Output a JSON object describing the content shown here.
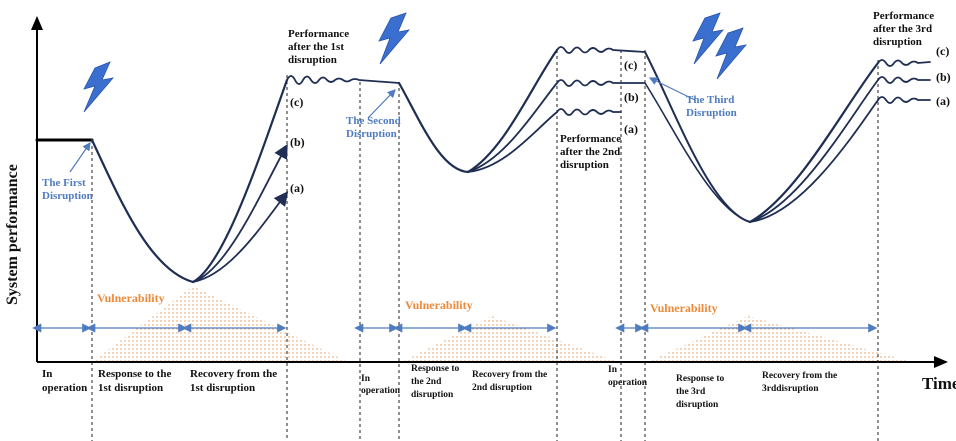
{
  "axes": {
    "y_label": "System performance",
    "x_label": "Time"
  },
  "disruptions": {
    "first": "The First Disruption",
    "second": "The Second Disruption",
    "third": "The Third Disruption"
  },
  "performance_labels": {
    "after_1": [
      "Performance",
      "after the 1st",
      "disruption"
    ],
    "after_2": [
      "Performance",
      "after the 2nd",
      "disruption"
    ],
    "after_3": [
      "Performance",
      "after the 3rd",
      "disruption"
    ]
  },
  "curve_labels": [
    "(a)",
    "(b)",
    "(c)"
  ],
  "vulnerability_label": "Vulnerability",
  "phases": {
    "in_operation_1": [
      "In",
      "operation"
    ],
    "response_1": [
      "Response to the",
      "1st disruption"
    ],
    "recovery_1": [
      "Recovery from the",
      "1st disruption"
    ],
    "in_operation_2": [
      "In",
      "operation"
    ],
    "response_2": [
      "Response to",
      "the 2nd",
      "disruption"
    ],
    "recovery_2": [
      "Recovery from the",
      "2nd disruption"
    ],
    "in_operation_3": [
      "In",
      "operation"
    ],
    "response_3": [
      "Response to",
      "the 3rd",
      "disruption"
    ],
    "recovery_3": [
      "Recovery from the",
      "3rddisruption"
    ]
  },
  "colors": {
    "curve": "#1f2e52",
    "annotation": "#4f7bbf",
    "vulnerability": "#ed8a3a",
    "lightning": "#3a6fd0"
  }
}
